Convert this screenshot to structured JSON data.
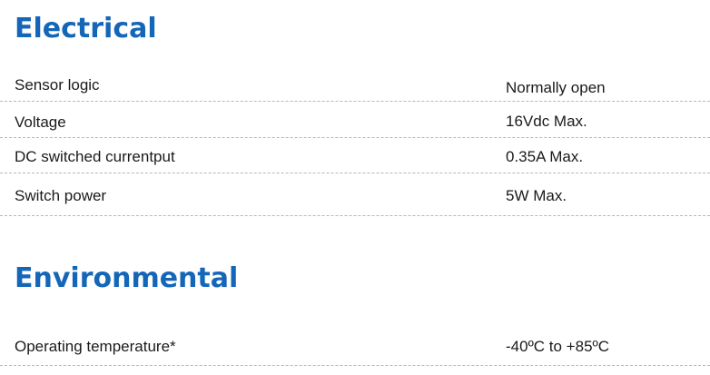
{
  "electrical": {
    "title": "Electrical",
    "rows": [
      {
        "label": "Sensor logic",
        "value": "Normally open"
      },
      {
        "label": "Voltage",
        "value": "16Vdc Max."
      },
      {
        "label": "DC switched currentput",
        "value": "0.35A Max."
      },
      {
        "label": "Switch power",
        "value": "5W Max."
      }
    ]
  },
  "environmental": {
    "title": "Environmental",
    "rows": [
      {
        "label": "Operating temperature*",
        "value": "-40ºC to +85ºC"
      }
    ]
  },
  "colors": {
    "heading": "#1466b8",
    "text": "#1a1a1a",
    "divider": "#b8b8b8"
  }
}
